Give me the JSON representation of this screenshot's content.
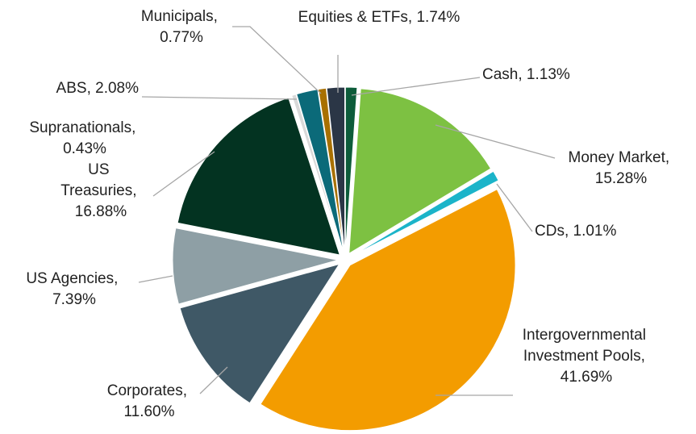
{
  "chart_data": {
    "type": "pie",
    "values": [
      1.13,
      15.28,
      1.01,
      41.69,
      11.6,
      7.39,
      16.88,
      0.43,
      2.08,
      0.77,
      1.74
    ],
    "value_labels": [
      "Cash, 1.13%",
      "Money Market, 15.28%",
      "CDs, 1.01%",
      "Intergovernmental Investment Pools, 41.69%",
      "Corporates, 11.60%",
      "US Agencies, 7.39%",
      "US Treasuries, 16.88%",
      "Supranationals, 0.43%",
      "ABS, 2.08%",
      "Municipals, 0.77%",
      "Equities & ETFs, 1.74%"
    ],
    "colors": [
      "#0d5c3a",
      "#7dc142",
      "#1bb4c9",
      "#f39c00",
      "#3f5866",
      "#8e9fa5",
      "#033321",
      "#d9d9d9",
      "#0b6a79",
      "#a87000",
      "#2b3646"
    ]
  }
}
